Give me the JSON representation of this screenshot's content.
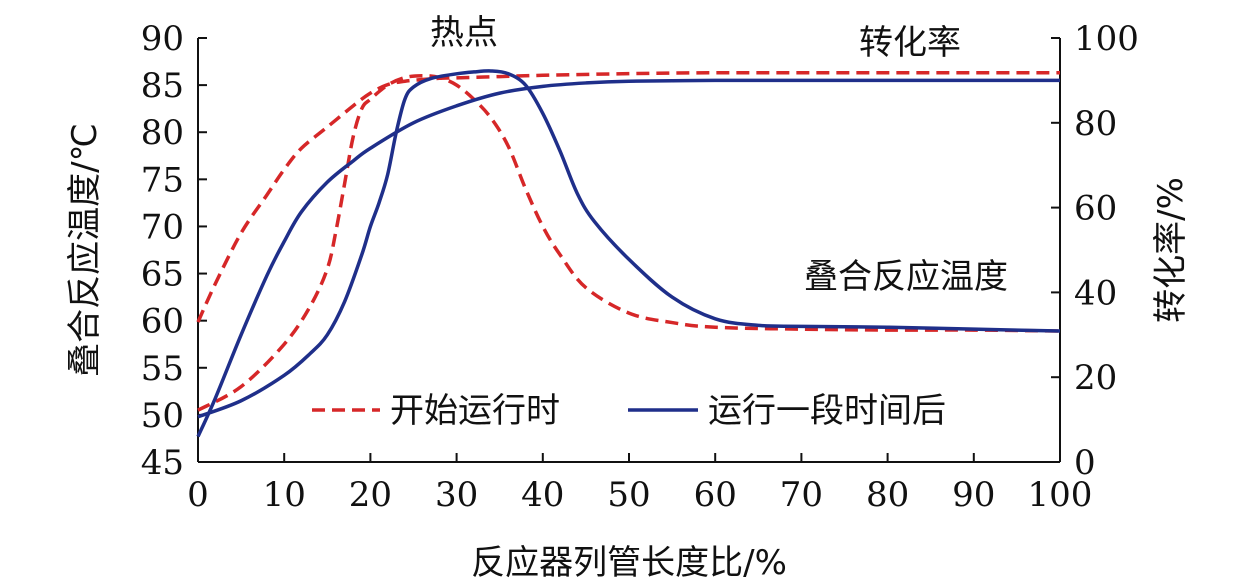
{
  "chart_data": {
    "type": "line",
    "xlabel": "反应器列管长度比/%",
    "ylabel_left": "叠合反应温度/℃",
    "ylabel_right": "转化率/%",
    "xlim": [
      0,
      100
    ],
    "ylim_left": [
      45,
      90
    ],
    "ylim_right": [
      0,
      100
    ],
    "x_ticks": [
      "0",
      "10",
      "20",
      "30",
      "40",
      "50",
      "60",
      "70",
      "80",
      "90",
      "100"
    ],
    "y_left_ticks": [
      "45",
      "50",
      "55",
      "60",
      "65",
      "70",
      "75",
      "80",
      "85",
      "90"
    ],
    "y_right_ticks": [
      "0",
      "20",
      "40",
      "60",
      "80",
      "100"
    ],
    "grid": false,
    "legend_position": "bottom-center",
    "annotations": {
      "hot_spot": "热点",
      "conversion": "转化率",
      "temperature": "叠合反应温度"
    },
    "legend": [
      "开始运行时",
      "运行一段时间后"
    ],
    "series": [
      {
        "name": "开始运行时",
        "style": "dashed",
        "color": "#d62728",
        "metric": "conversion",
        "axis": "right",
        "x": [
          0,
          2,
          5,
          8,
          10,
          12,
          15,
          18,
          20,
          22,
          24,
          26,
          28,
          30,
          35,
          40,
          50,
          60,
          70,
          80,
          90,
          100
        ],
        "y": [
          33,
          42,
          54,
          63,
          69,
          74,
          79,
          84,
          87,
          89,
          89.8,
          90.2,
          90.5,
          90.6,
          90.9,
          91.2,
          91.6,
          91.8,
          91.8,
          91.8,
          91.8,
          91.8
        ]
      },
      {
        "name": "开始运行时",
        "style": "dashed",
        "color": "#d62728",
        "metric": "temperature",
        "axis": "left",
        "x": [
          0,
          5,
          10,
          13,
          15,
          16,
          17,
          18,
          19,
          20,
          22,
          24,
          26,
          28,
          30,
          32,
          34,
          36,
          38,
          40,
          42,
          45,
          50,
          55,
          60,
          70,
          80,
          90,
          100
        ],
        "y": [
          50.5,
          53,
          57.5,
          61.5,
          65.5,
          69.5,
          74.5,
          79.5,
          82.5,
          83.5,
          85,
          85.8,
          86,
          85.8,
          85,
          83.5,
          81.5,
          78.5,
          74,
          70,
          67,
          63.5,
          60.8,
          59.8,
          59.3,
          59.1,
          59,
          59,
          58.9
        ]
      },
      {
        "name": "运行一段时间后",
        "style": "solid",
        "color": "#1f2f8a",
        "metric": "conversion",
        "axis": "right",
        "x": [
          0,
          2,
          5,
          8,
          10,
          12,
          15,
          18,
          20,
          25,
          30,
          35,
          40,
          45,
          50,
          60,
          70,
          80,
          90,
          100
        ],
        "y": [
          6,
          15,
          30,
          44,
          52,
          59,
          66,
          71,
          74,
          80,
          84,
          87,
          88.6,
          89.4,
          89.8,
          90,
          90,
          90,
          90,
          90
        ]
      },
      {
        "name": "运行一段时间后",
        "style": "solid",
        "color": "#1f2f8a",
        "metric": "temperature",
        "axis": "left",
        "x": [
          0,
          5,
          10,
          13,
          15,
          17,
          19,
          20,
          21,
          22,
          23,
          24,
          25,
          27,
          30,
          32,
          34,
          36,
          38,
          40,
          42,
          44,
          46,
          50,
          55,
          60,
          65,
          70,
          80,
          90,
          100
        ],
        "y": [
          49.8,
          51.5,
          54.2,
          56.5,
          58.5,
          62,
          67,
          70,
          72.5,
          75.5,
          80,
          83.5,
          84.8,
          85.7,
          86.2,
          86.4,
          86.5,
          86.2,
          85,
          82,
          78,
          73.5,
          70.5,
          66.5,
          62.5,
          60.2,
          59.5,
          59.4,
          59.3,
          59.1,
          58.9
        ]
      }
    ]
  }
}
